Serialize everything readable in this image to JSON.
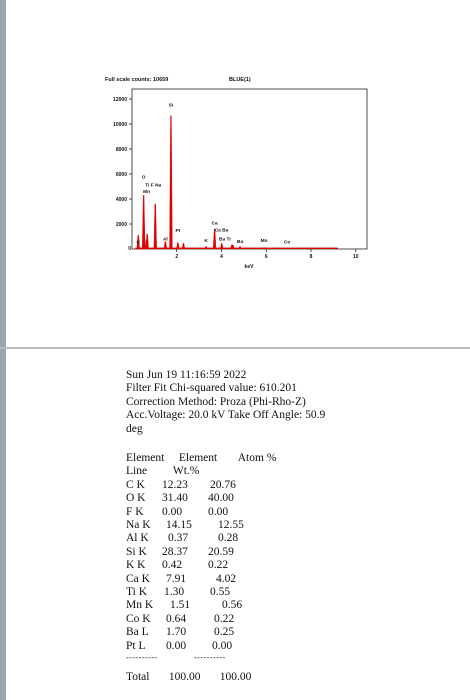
{
  "chart_data": {
    "type": "line",
    "title": "BLUE(1)",
    "scale_label": "Full scale counts: 10659",
    "xlabel": "keV",
    "xlim": [
      0,
      10.5
    ],
    "ylim": [
      0,
      12800
    ],
    "x_ticks": [
      2,
      4,
      6,
      8,
      10
    ],
    "y_ticks": [
      2000,
      4000,
      6000,
      8000,
      10000,
      12000
    ],
    "grid": false,
    "fill_color": "#e00000",
    "peaks": [
      {
        "x": 0.28,
        "y": 1100
      },
      {
        "x": 0.52,
        "y": 4300
      },
      {
        "x": 0.64,
        "y": 700
      },
      {
        "x": 0.68,
        "y": 1200
      },
      {
        "x": 1.04,
        "y": 3600
      },
      {
        "x": 1.49,
        "y": 600
      },
      {
        "x": 1.74,
        "y": 10659
      },
      {
        "x": 2.05,
        "y": 500
      },
      {
        "x": 2.3,
        "y": 450
      },
      {
        "x": 3.31,
        "y": 200
      },
      {
        "x": 3.69,
        "y": 1600
      },
      {
        "x": 4.01,
        "y": 450
      },
      {
        "x": 4.47,
        "y": 350
      },
      {
        "x": 4.51,
        "y": 300
      },
      {
        "x": 4.83,
        "y": 200
      },
      {
        "x": 5.9,
        "y": 120
      },
      {
        "x": 6.93,
        "y": 80
      }
    ],
    "annotations": [
      {
        "text": "Si",
        "x": 1.74,
        "y": 11400
      },
      {
        "text": "O",
        "x": 0.52,
        "y": 5650
      },
      {
        "text": "Ti F Na",
        "x": 0.95,
        "y": 5000
      },
      {
        "text": "Mn",
        "x": 0.65,
        "y": 4500
      },
      {
        "text": "Pt",
        "x": 2.05,
        "y": 1350
      },
      {
        "text": "Al",
        "x": 1.49,
        "y": 700
      },
      {
        "text": "C",
        "x": 0.28,
        "y": 450
      },
      {
        "text": "Ca",
        "x": 3.69,
        "y": 1950
      },
      {
        "text": "Ca  Ba",
        "x": 4.0,
        "y": 1400
      },
      {
        "text": "K",
        "x": 3.31,
        "y": 550
      },
      {
        "text": "Ba  Ti",
        "x": 4.15,
        "y": 700
      },
      {
        "text": "Ba",
        "x": 4.83,
        "y": 500
      },
      {
        "text": "Mn",
        "x": 5.9,
        "y": 550
      },
      {
        "text": "Co",
        "x": 6.93,
        "y": 450
      }
    ]
  },
  "report": {
    "lines": [
      "Sun Jun 19 11:16:59 2022",
      "Filter Fit   Chi-squared value:  610.201",
      "Correction Method:  Proza (Phi-Rho-Z)",
      "Acc.Voltage: 20.0 kV  Take Off Angle: 50.9",
      "deg"
    ],
    "table_header": [
      "Element",
      "Element",
      "Atom %"
    ],
    "table_header2": [
      "Line",
      "Wt.%"
    ],
    "rows": [
      [
        "C K",
        "12.23",
        "20.76"
      ],
      [
        "O K",
        "31.40",
        "40.00"
      ],
      [
        "F K",
        "0.00",
        "0.00"
      ],
      [
        "Na K",
        "14.15",
        "12.55"
      ],
      [
        "Al K",
        "0.37",
        "0.28"
      ],
      [
        "Si K",
        "28.37",
        "20.59"
      ],
      [
        "K K",
        "0.42",
        "0.22"
      ],
      [
        "Ca K",
        "7.91",
        "4.02"
      ],
      [
        "Ti K",
        "1.30",
        "0.55"
      ],
      [
        "Mn K",
        "1.51",
        "0.56"
      ],
      [
        "Co K",
        "0.64",
        "0.22"
      ],
      [
        "Ba L",
        "1.70",
        "0.25"
      ],
      [
        "Pt L",
        "0.00",
        "0.00"
      ]
    ],
    "dashes": [
      "----------",
      "----------"
    ],
    "total": [
      "Total",
      "100.00",
      "100.00"
    ]
  }
}
